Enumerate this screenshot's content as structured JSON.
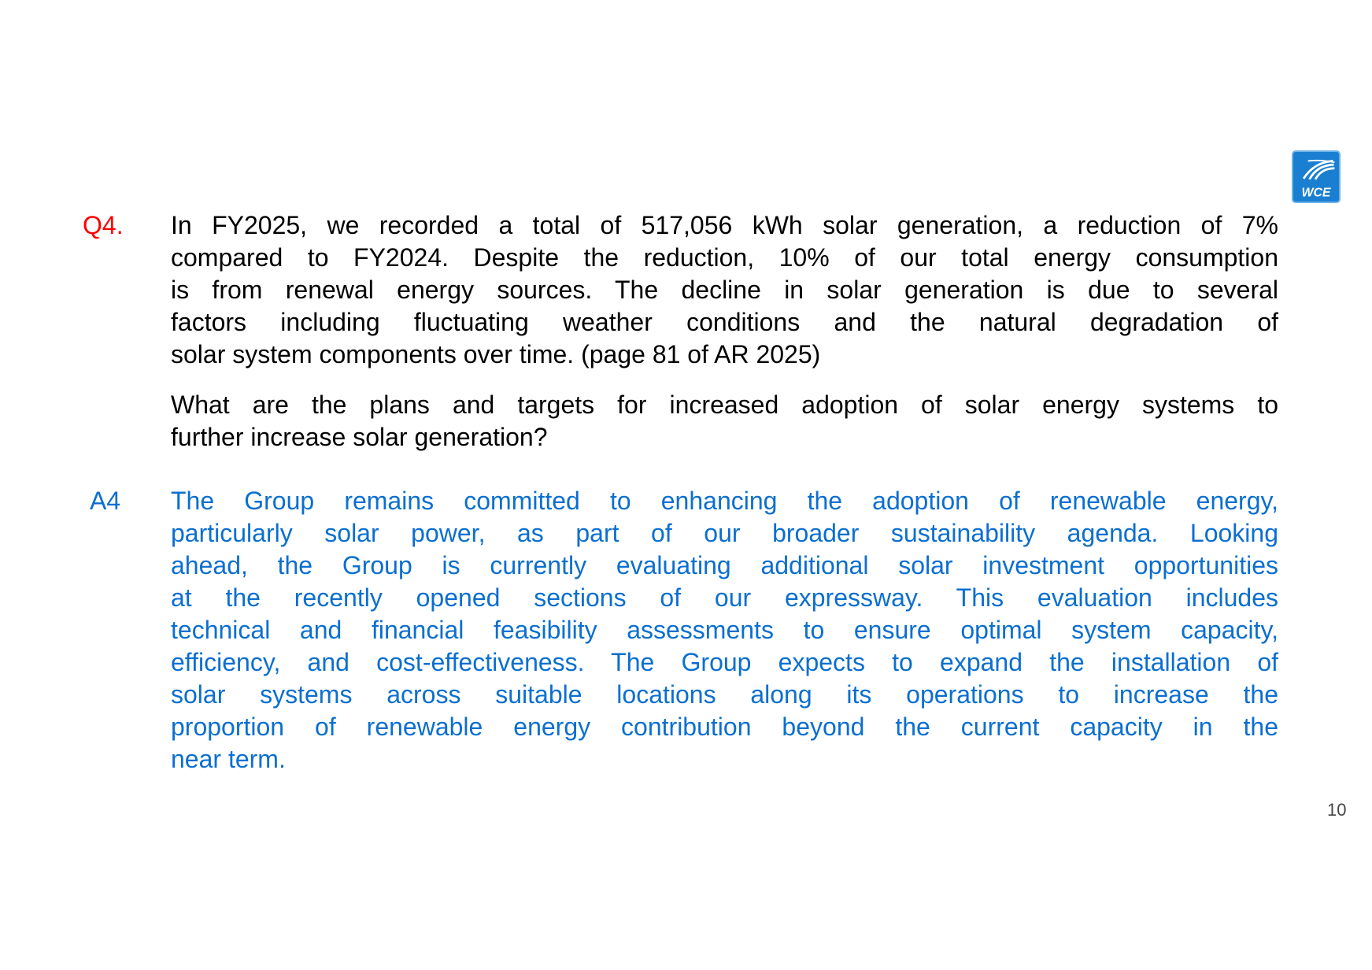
{
  "logo": {
    "text": "WCE",
    "color": "#1a7fd0"
  },
  "question": {
    "label": "Q4.",
    "label_color": "#ff0000",
    "paragraph1": [
      "In FY2025, we recorded a total of 517,056 kWh solar generation, a reduction of 7%",
      "compared to FY2024. Despite the reduction, 10% of our total energy consumption",
      "is from renewal energy sources. The decline in solar generation is due to several",
      "factors including fluctuating weather conditions and the natural degradation of",
      "solar system components over time. (page 81 of AR 2025)"
    ],
    "paragraph2": [
      "What are the plans and targets for increased adoption of solar energy systems to",
      "further increase solar generation?"
    ]
  },
  "answer": {
    "label": "A4",
    "color": "#0b6fd0",
    "lines": [
      "The Group remains committed to enhancing the adoption of renewable energy,",
      "particularly solar power, as part of our broader sustainability agenda. Looking",
      "ahead, the Group is currently evaluating additional solar investment opportunities",
      "at the recently opened sections of our expressway. This evaluation includes",
      "technical and financial feasibility assessments to ensure optimal system capacity,",
      "efficiency, and cost-effectiveness. The Group expects to expand the installation of",
      "solar systems across suitable locations along its operations to increase the",
      "proportion of renewable energy contribution beyond the current capacity in the",
      "near term."
    ]
  },
  "page_number": "10"
}
